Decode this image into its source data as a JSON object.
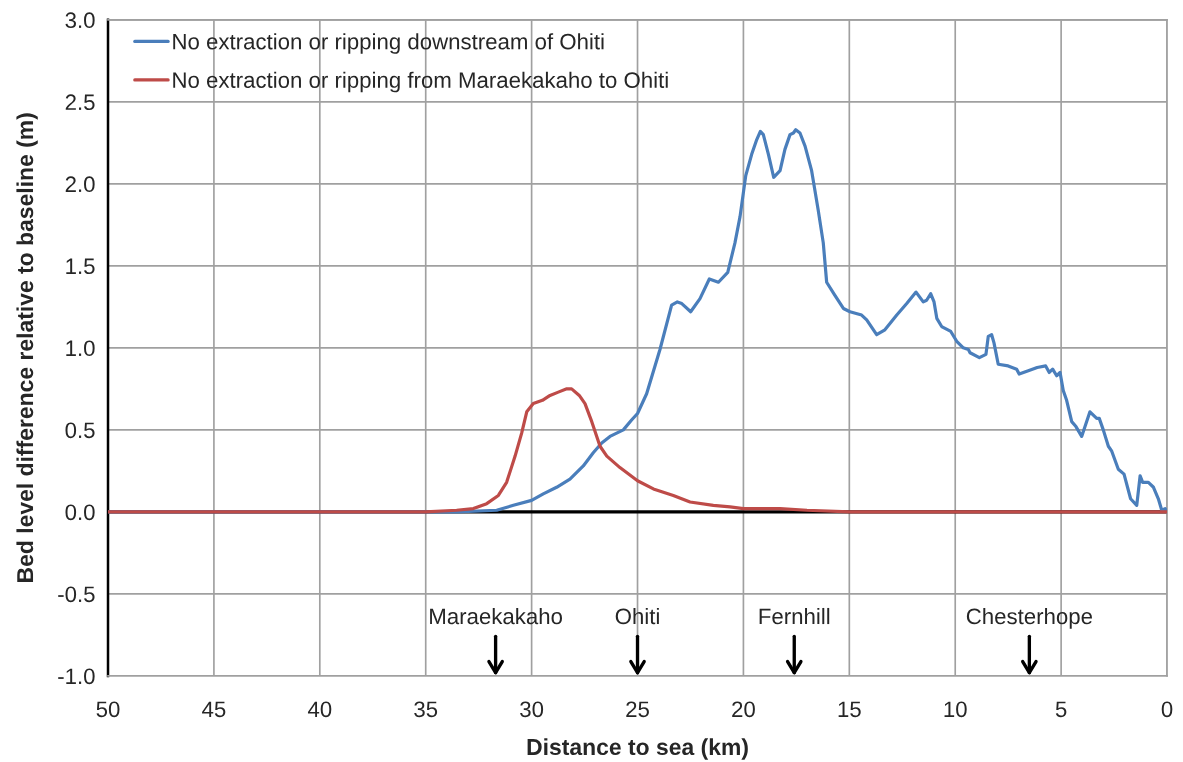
{
  "chart_data": {
    "type": "line",
    "xlabel": "Distance to sea (km)",
    "ylabel": "Bed level difference relative to baseline (m)",
    "xlim": [
      50,
      0
    ],
    "xticks": [
      50,
      45,
      40,
      35,
      30,
      25,
      20,
      15,
      10,
      5,
      0
    ],
    "ylim": [
      -1,
      3
    ],
    "yticks": [
      {
        "value": 3,
        "label": "3.0"
      },
      {
        "value": 2.5,
        "label": "2.5"
      },
      {
        "value": 2,
        "label": "2.0"
      },
      {
        "value": 1.5,
        "label": "1.5"
      },
      {
        "value": 1,
        "label": "1.0"
      },
      {
        "value": 0.5,
        "label": "0.5"
      },
      {
        "value": 0,
        "label": "0.0"
      },
      {
        "value": -0.5,
        "label": "-0.5"
      },
      {
        "value": -1,
        "label": "-1.0"
      }
    ],
    "grid": true,
    "legend": "top left",
    "series": [
      {
        "name": "No extraction or ripping downstream of Ohiti",
        "color": "#4a7ebb",
        "x": [
          50,
          35,
          33.5,
          31.65,
          30.86,
          30,
          29.45,
          28.82,
          28.19,
          27.56,
          27.09,
          26.69,
          26.3,
          25.67,
          25.28,
          25,
          24.57,
          23.94,
          23.39,
          23.12,
          22.91,
          22.49,
          22.05,
          21.61,
          21.18,
          20.74,
          20.4,
          20.16,
          19.89,
          19.61,
          19.37,
          19.2,
          19.06,
          18.82,
          18.57,
          18.27,
          18.04,
          17.8,
          17.64,
          17.53,
          17.33,
          17.09,
          16.78,
          16.47,
          16.23,
          16.07,
          15.68,
          15.28,
          14.97,
          14.42,
          14.18,
          13.71,
          13.32,
          12.76,
          12.29,
          11.85,
          11.51,
          11.35,
          11.16,
          11.0,
          10.87,
          10.64,
          10.21,
          9.93,
          9.62,
          9.38,
          9.3,
          8.86,
          8.55,
          8.44,
          8.28,
          8.17,
          7.97,
          7.5,
          7.1,
          6.98,
          6.55,
          6.13,
          5.73,
          5.56,
          5.4,
          5.21,
          5.05,
          4.9,
          4.74,
          4.5,
          4.3,
          4.03,
          3.64,
          3.32,
          3.2,
          3.01,
          2.77,
          2.61,
          2.3,
          2.03,
          1.72,
          1.43,
          1.27,
          1.15,
          0.88,
          0.64,
          0.41,
          0.25,
          0.09,
          0
        ],
        "values": [
          0,
          0,
          0,
          0.01,
          0.04,
          0.07,
          0.11,
          0.15,
          0.2,
          0.28,
          0.36,
          0.42,
          0.46,
          0.5,
          0.56,
          0.6,
          0.72,
          0.99,
          1.26,
          1.28,
          1.27,
          1.22,
          1.3,
          1.42,
          1.4,
          1.46,
          1.64,
          1.8,
          2.05,
          2.18,
          2.27,
          2.32,
          2.3,
          2.18,
          2.04,
          2.08,
          2.21,
          2.3,
          2.31,
          2.33,
          2.31,
          2.23,
          2.08,
          1.84,
          1.64,
          1.4,
          1.32,
          1.24,
          1.22,
          1.2,
          1.17,
          1.08,
          1.11,
          1.2,
          1.27,
          1.34,
          1.28,
          1.29,
          1.33,
          1.28,
          1.18,
          1.13,
          1.1,
          1.04,
          1.0,
          0.99,
          0.97,
          0.94,
          0.96,
          1.07,
          1.08,
          1.03,
          0.9,
          0.89,
          0.87,
          0.84,
          0.86,
          0.88,
          0.89,
          0.85,
          0.87,
          0.83,
          0.85,
          0.74,
          0.68,
          0.55,
          0.52,
          0.46,
          0.61,
          0.57,
          0.57,
          0.5,
          0.4,
          0.37,
          0.26,
          0.23,
          0.08,
          0.04,
          0.22,
          0.18,
          0.18,
          0.15,
          0.08,
          0.01,
          0.02,
          0
        ]
      },
      {
        "name": "No extraction or ripping from Maraekakaho to Ohiti",
        "color": "#be4b48",
        "x": [
          50,
          35,
          33.54,
          32.75,
          32.12,
          31.57,
          31.18,
          30.78,
          30.47,
          30.23,
          29.92,
          29.49,
          29.13,
          28.74,
          28.34,
          28.11,
          27.75,
          27.48,
          27.16,
          26.77,
          26.45,
          25.83,
          25,
          24.25,
          23.31,
          22.52,
          21.42,
          20.63,
          20,
          18.27,
          17,
          15,
          0
        ],
        "values": [
          0,
          0,
          0.01,
          0.02,
          0.05,
          0.1,
          0.18,
          0.34,
          0.48,
          0.61,
          0.66,
          0.68,
          0.71,
          0.73,
          0.75,
          0.75,
          0.71,
          0.66,
          0.55,
          0.4,
          0.34,
          0.27,
          0.19,
          0.14,
          0.1,
          0.06,
          0.04,
          0.03,
          0.02,
          0.02,
          0.01,
          0,
          0
        ]
      }
    ],
    "ref_lines": [
      {
        "axis": "y",
        "value": 0,
        "color": "#000000"
      }
    ],
    "annotations": [
      {
        "text": "Maraekakaho",
        "x": 31.7
      },
      {
        "text": "Ohiti",
        "x": 25
      },
      {
        "text": "Fernhill",
        "x": 17.6
      },
      {
        "text": "Chesterhope",
        "x": 6.5
      }
    ]
  }
}
